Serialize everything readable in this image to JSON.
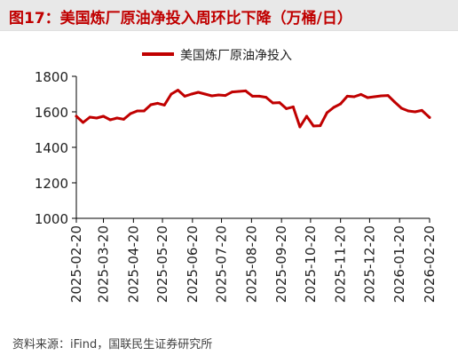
{
  "header": {
    "title": "图17：美国炼厂原油净投入周环比下降（万桶/日）"
  },
  "source": "资料来源：iFind，国联民生证券研究所",
  "chart_data": {
    "type": "line",
    "title": "",
    "xlabel": "",
    "ylabel": "",
    "ylim": [
      1000,
      1800
    ],
    "yticks": [
      1000,
      1200,
      1400,
      1600,
      1800
    ],
    "grid": false,
    "legend_position": "top-center",
    "series": [
      {
        "name": "美国炼厂原油净投入",
        "color": "#c00000",
        "x": [
          "2025-02-20",
          "2025-02-27",
          "2025-03-06",
          "2025-03-13",
          "2025-03-20",
          "2025-03-27",
          "2025-04-03",
          "2025-04-10",
          "2025-04-17",
          "2025-04-24",
          "2025-05-01",
          "2025-05-08",
          "2025-05-15",
          "2025-05-22",
          "2025-05-29",
          "2025-06-05",
          "2025-06-12",
          "2025-06-19",
          "2025-06-26",
          "2025-07-03",
          "2025-07-10",
          "2025-07-17",
          "2025-07-24",
          "2025-07-31",
          "2025-08-07",
          "2025-08-14",
          "2025-08-21",
          "2025-08-28",
          "2025-09-04",
          "2025-09-11",
          "2025-09-18",
          "2025-09-25",
          "2025-10-02",
          "2025-10-09",
          "2025-10-16",
          "2025-10-23",
          "2025-10-30",
          "2025-11-06",
          "2025-11-13",
          "2025-11-20",
          "2025-11-27",
          "2025-12-04",
          "2025-12-11",
          "2025-12-18",
          "2025-12-25",
          "2026-01-01",
          "2026-01-08",
          "2026-01-15",
          "2026-01-22",
          "2026-01-29",
          "2026-02-05",
          "2026-02-12",
          "2026-02-20"
        ],
        "values": [
          1575,
          1540,
          1570,
          1565,
          1575,
          1555,
          1565,
          1558,
          1590,
          1605,
          1605,
          1640,
          1648,
          1638,
          1700,
          1722,
          1688,
          1700,
          1710,
          1700,
          1690,
          1695,
          1692,
          1712,
          1715,
          1718,
          1688,
          1688,
          1682,
          1650,
          1652,
          1618,
          1628,
          1515,
          1575,
          1520,
          1522,
          1595,
          1625,
          1645,
          1688,
          1685,
          1698,
          1680,
          1685,
          1690,
          1692,
          1655,
          1620,
          1605,
          1600,
          1608,
          1568
        ]
      }
    ],
    "xticks": [
      "2025-02-20",
      "2025-03-20",
      "2025-04-20",
      "2025-05-20",
      "2025-06-20",
      "2025-07-20",
      "2025-08-20",
      "2025-09-20",
      "2025-10-20",
      "2025-11-20",
      "2025-12-20",
      "2026-01-20",
      "2026-02-20"
    ]
  }
}
